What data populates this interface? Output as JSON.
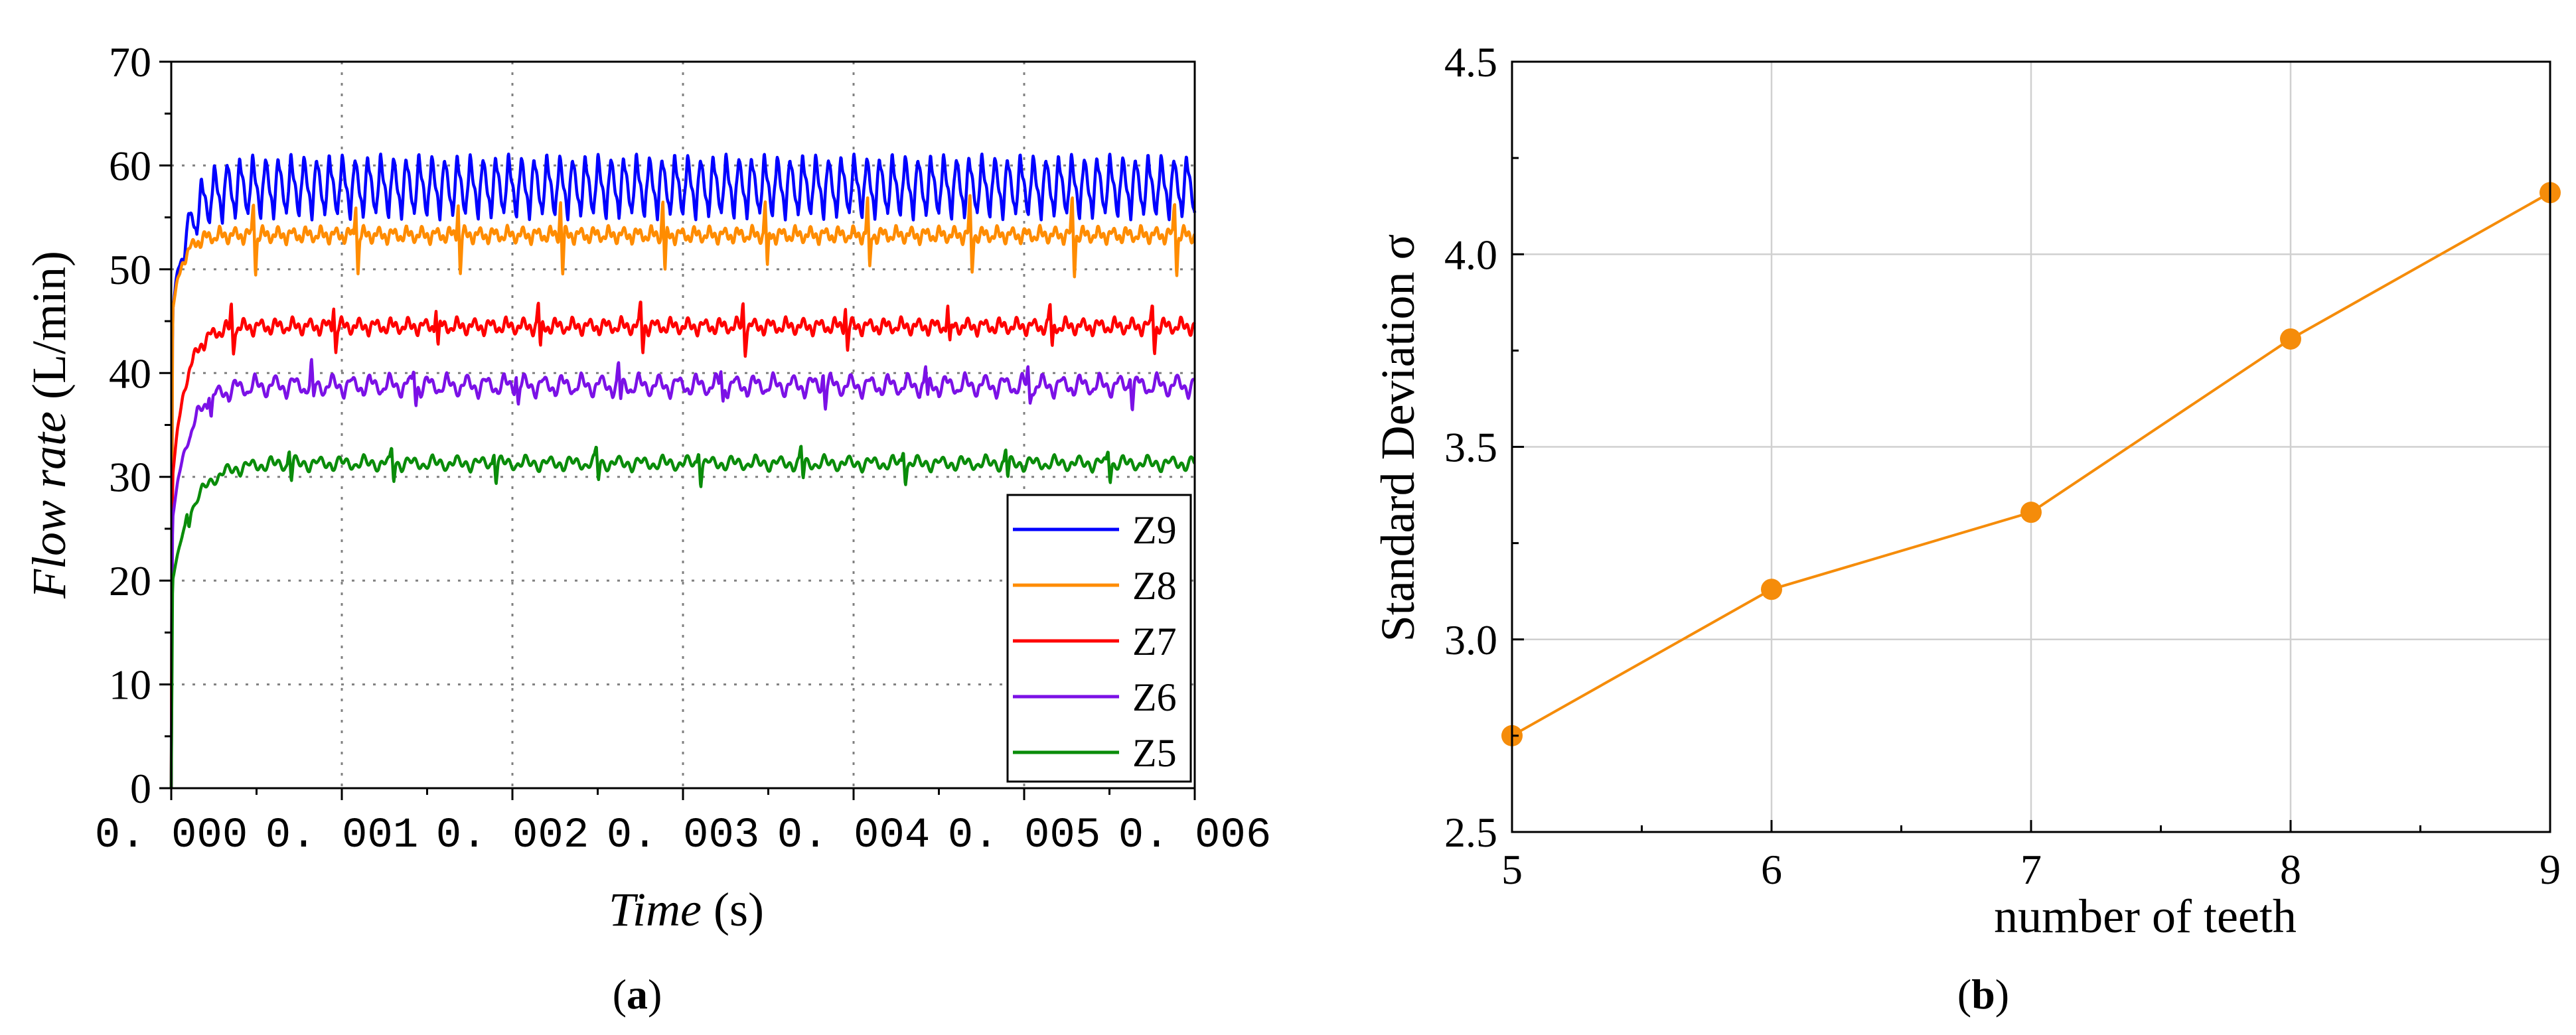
{
  "colors": {
    "Z9": "#0000ff",
    "Z8": "#ff8c00",
    "Z7": "#ff0000",
    "Z6": "#7b11e6",
    "Z5": "#0a8c0a",
    "scatter": "#f58c0a"
  },
  "chart_data": [
    {
      "id": "a",
      "type": "line",
      "caption_paren_open": "(",
      "caption_letter": "a",
      "caption_paren_close": ")",
      "title": "",
      "xlabel_italic": "Time",
      "xlabel_unit": " (s)",
      "ylabel_italic": "Flow rate",
      "ylabel_unit": " (L/min)",
      "xlim": [
        0,
        0.006
      ],
      "ylim": [
        0,
        70
      ],
      "xticks": [
        0,
        0.001,
        0.002,
        0.003,
        0.004,
        0.005,
        0.006
      ],
      "xtick_labels": [
        "0. 000",
        "0. 001",
        "0. 002",
        "0. 003",
        "0. 004",
        "0. 005",
        "0. 006"
      ],
      "yticks": [
        0,
        10,
        20,
        30,
        40,
        50,
        60,
        70
      ],
      "ytick_labels": [
        "0",
        "10",
        "20",
        "30",
        "40",
        "50",
        "60",
        "70"
      ],
      "grid": true,
      "legend_position": "bottom-right",
      "series": [
        {
          "name": "Z9",
          "mean": 58,
          "amp_main": 2.9,
          "teeth": 9,
          "rise_start": 46,
          "tau": 9e-05,
          "spike": 0
        },
        {
          "name": "Z8",
          "mean": 53.3,
          "amp_main": 0.6,
          "teeth": 8,
          "rise_start": 46,
          "tau": 6e-05,
          "spike": 3.5
        },
        {
          "name": "Z7",
          "mean": 44.5,
          "amp_main": 0.6,
          "teeth": 7,
          "rise_start": 30,
          "tau": 8e-05,
          "spike": 2.2
        },
        {
          "name": "Z6",
          "mean": 38.8,
          "amp_main": 0.9,
          "teeth": 6,
          "rise_start": 26,
          "tau": 0.0001,
          "spike": 1.6
        },
        {
          "name": "Z5",
          "mean": 31.3,
          "amp_main": 0.5,
          "teeth": 5,
          "rise_start": 20,
          "tau": 0.00012,
          "spike": 1.4
        }
      ]
    },
    {
      "id": "b",
      "type": "line",
      "caption_paren_open": "(",
      "caption_letter": "b",
      "caption_paren_close": ")",
      "title": "",
      "xlabel": "number of teeth",
      "ylabel": "Standard Deviation σ",
      "xlim": [
        5,
        9
      ],
      "ylim": [
        2.5,
        4.5
      ],
      "xticks": [
        5,
        6,
        7,
        8,
        9
      ],
      "xtick_labels": [
        "5",
        "6",
        "7",
        "8",
        "9"
      ],
      "yticks": [
        2.5,
        3.0,
        3.5,
        4.0,
        4.5
      ],
      "ytick_labels": [
        "2.5",
        "3.0",
        "3.5",
        "4.0",
        "4.5"
      ],
      "grid": true,
      "x": [
        5,
        6,
        7,
        8,
        9
      ],
      "y": [
        2.75,
        3.13,
        3.33,
        3.78,
        4.16
      ]
    }
  ]
}
